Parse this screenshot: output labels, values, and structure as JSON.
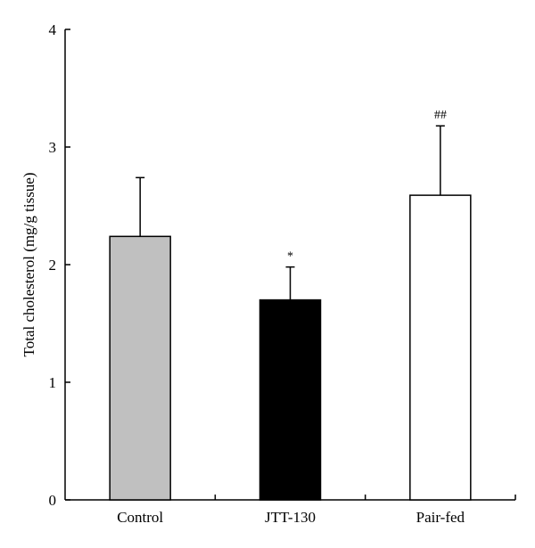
{
  "chart_data": {
    "type": "bar",
    "categories": [
      "Control",
      "JTT-130",
      "Pair-fed"
    ],
    "values": [
      2.24,
      1.7,
      2.59
    ],
    "error_upper": [
      0.5,
      0.28,
      0.59
    ],
    "bar_colors": [
      "#c0c0c0",
      "#000000",
      "#ffffff"
    ],
    "annotations": [
      "",
      "*",
      "##"
    ],
    "title": "",
    "xlabel": "",
    "ylabel": "Total cholesterol (mg/g tissue)",
    "ylim": [
      0,
      4
    ],
    "yticks": [
      0,
      1,
      2,
      3,
      4
    ],
    "grid": false,
    "legend": "none"
  }
}
